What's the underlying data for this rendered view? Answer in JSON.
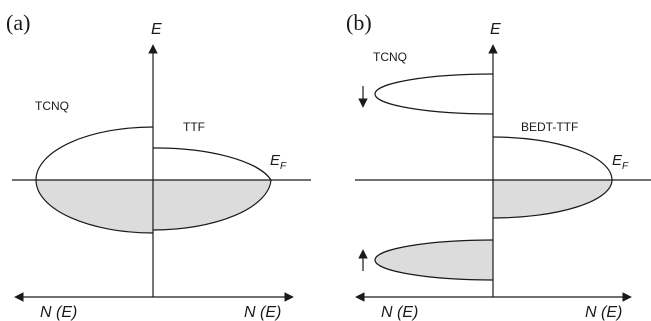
{
  "panels": [
    {
      "label": "(a)",
      "energy_axis": "E",
      "fermi_level": {
        "main": "E",
        "sub": "F"
      },
      "dos_left": "N (E)",
      "dos_right": "N (E)",
      "bands": [
        {
          "name": "TCNQ",
          "side": "left"
        },
        {
          "name": "TTF",
          "side": "right"
        }
      ]
    },
    {
      "label": "(b)",
      "energy_axis": "E",
      "fermi_level": {
        "main": "E",
        "sub": "F"
      },
      "dos_left": "N (E)",
      "dos_right": "N (E)",
      "bands": [
        {
          "name": "TCNQ",
          "side": "left",
          "spin": "down"
        },
        {
          "name": "BEDT-TTF",
          "side": "right"
        }
      ]
    }
  ],
  "colors": {
    "ink": "#1a1a1a",
    "occupied_fill": "#dcdcdc"
  }
}
